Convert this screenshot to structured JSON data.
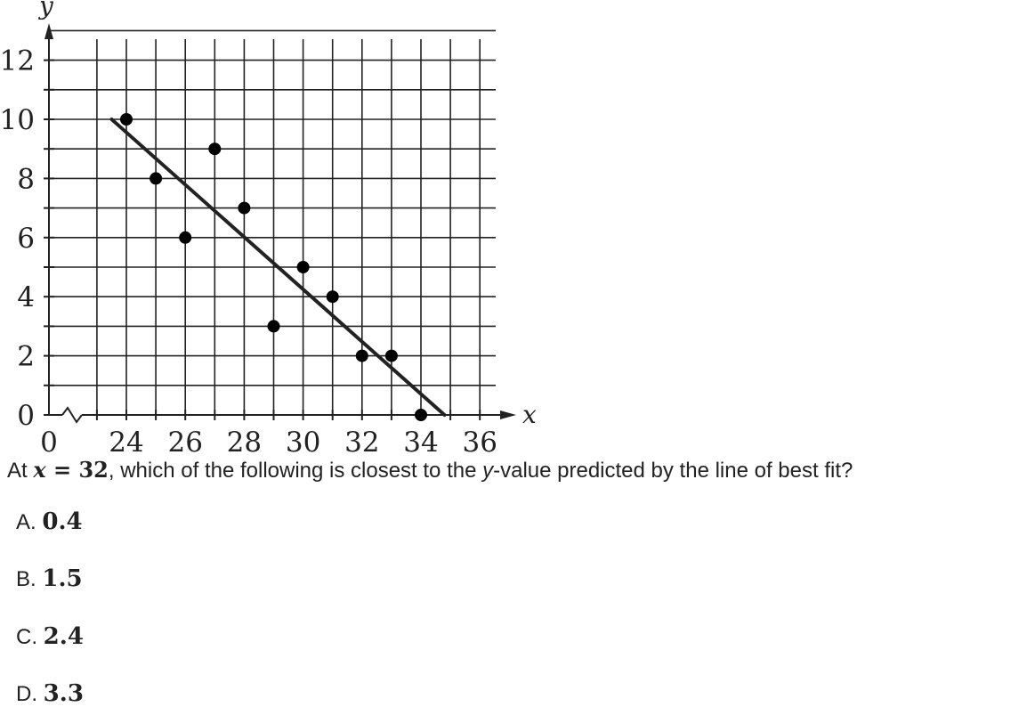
{
  "chart_data": {
    "type": "scatter",
    "x": [
      24,
      25,
      26,
      27,
      28,
      29,
      30,
      31,
      32,
      33,
      34
    ],
    "y": [
      10,
      8,
      6,
      9,
      7,
      3,
      5,
      4,
      2,
      2,
      0
    ],
    "best_fit_line": {
      "x": [
        23.5,
        34.8
      ],
      "y": [
        10,
        0
      ]
    },
    "xlabel": "x",
    "ylabel": "y",
    "x_ticks": [
      "0",
      "24",
      "26",
      "28",
      "30",
      "32",
      "34",
      "36"
    ],
    "y_ticks": [
      "0",
      "2",
      "4",
      "6",
      "8",
      "10",
      "12"
    ],
    "x_axis_break": true,
    "grid": true,
    "legend": "none"
  },
  "question": {
    "prefix": "At ",
    "var": "x",
    "equals": " = ",
    "value": "32",
    "text_a": ", which of the following is closest to the ",
    "yvar": "y",
    "text_b": "-value predicted by the line of best fit?"
  },
  "options": [
    {
      "letter": "A.",
      "value": "0.4"
    },
    {
      "letter": "B.",
      "value": "1.5"
    },
    {
      "letter": "C.",
      "value": "2.4"
    },
    {
      "letter": "D.",
      "value": "3.3"
    }
  ]
}
